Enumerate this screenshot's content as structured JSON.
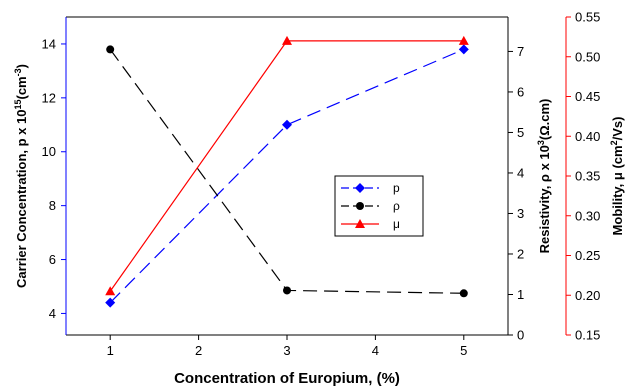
{
  "chart_data": {
    "type": "line",
    "x": [
      1,
      3,
      5
    ],
    "xlabel": "Concentration of Europium, (%)",
    "xlim": [
      0.5,
      5.5
    ],
    "xticks": [
      1,
      2,
      3,
      4,
      5
    ],
    "axes": {
      "left": {
        "label_parts": [
          "Carrier Concentration, p x 10",
          "15",
          "(cm",
          "-3",
          ")"
        ],
        "ylim": [
          3.2,
          15
        ],
        "ticks": [
          4,
          6,
          8,
          10,
          12,
          14
        ],
        "color": "#0000ff"
      },
      "right1": {
        "label_parts": [
          "Resistivity, ρ x 10",
          "3",
          "(Ω.cm)"
        ],
        "ylim": [
          0,
          7.85
        ],
        "ticks": [
          0,
          1,
          2,
          3,
          4,
          5,
          6,
          7
        ],
        "color": "#000000"
      },
      "right2": {
        "label_parts": [
          "Mobility, μ (cm",
          "2",
          "/Vs)"
        ],
        "ylim": [
          0.15,
          0.55
        ],
        "ticks": [
          0.15,
          0.2,
          0.25,
          0.3,
          0.35,
          0.4,
          0.45,
          0.5,
          0.55
        ],
        "tick_labels": [
          "0.15",
          "0.20",
          "0.25",
          "0.30",
          "0.35",
          "0.40",
          "0.45",
          "0.50",
          "0.55"
        ],
        "color": "#ff0000"
      }
    },
    "series": [
      {
        "name": "p",
        "axis": "left",
        "values": [
          4.4,
          11.0,
          13.8
        ],
        "color": "#0000ff",
        "dash": "long-dash",
        "marker": "diamond"
      },
      {
        "name": "ρ",
        "axis": "right1",
        "values": [
          7.05,
          1.1,
          1.03
        ],
        "color": "#000000",
        "dash": "long-dash",
        "marker": "circle"
      },
      {
        "name": "μ",
        "axis": "right2",
        "values": [
          0.205,
          0.52,
          0.52
        ],
        "color": "#ff0000",
        "dash": "solid",
        "marker": "triangle"
      }
    ],
    "legend": {
      "placement": "center-right"
    },
    "grid": false
  }
}
